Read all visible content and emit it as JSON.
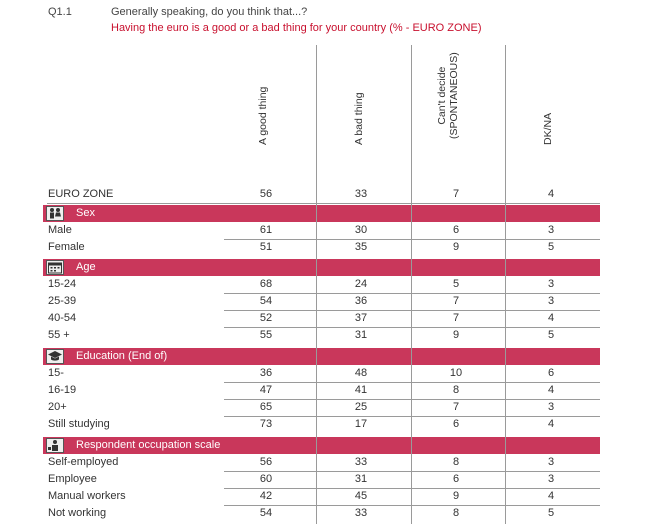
{
  "header": {
    "qid": "Q1.1",
    "question": "Generally speaking, do you think that...?",
    "subtitle": "Having the euro is a good or a bad thing for your country (% - EURO ZONE)"
  },
  "columns": [
    {
      "label": "A good thing"
    },
    {
      "label": "A bad thing"
    },
    {
      "label": "Can't decide",
      "label2": "(SPONTANEOUS)"
    },
    {
      "label": "DK/NA"
    }
  ],
  "total": {
    "label": "EURO ZONE",
    "values": [
      "56",
      "33",
      "7",
      "4"
    ]
  },
  "sections": [
    {
      "title": "Sex",
      "icon": "people-icon",
      "rows": [
        {
          "label": "Male",
          "values": [
            "61",
            "30",
            "6",
            "3"
          ]
        },
        {
          "label": "Female",
          "values": [
            "51",
            "35",
            "9",
            "5"
          ]
        }
      ]
    },
    {
      "title": "Age",
      "icon": "calendar-icon",
      "rows": [
        {
          "label": "15-24",
          "values": [
            "68",
            "24",
            "5",
            "3"
          ]
        },
        {
          "label": "25-39",
          "values": [
            "54",
            "36",
            "7",
            "3"
          ]
        },
        {
          "label": "40-54",
          "values": [
            "52",
            "37",
            "7",
            "4"
          ]
        },
        {
          "label": "55 +",
          "values": [
            "55",
            "31",
            "9",
            "5"
          ]
        }
      ]
    },
    {
      "title": "Education (End of)",
      "icon": "graduation-cap-icon",
      "rows": [
        {
          "label": "15-",
          "values": [
            "36",
            "48",
            "10",
            "6"
          ]
        },
        {
          "label": "16-19",
          "values": [
            "47",
            "41",
            "8",
            "4"
          ]
        },
        {
          "label": "20+",
          "values": [
            "65",
            "25",
            "7",
            "3"
          ]
        },
        {
          "label": "Still studying",
          "values": [
            "73",
            "17",
            "6",
            "4"
          ]
        }
      ]
    },
    {
      "title": "Respondent occupation scale",
      "icon": "worker-icon",
      "rows": [
        {
          "label": "Self-employed",
          "values": [
            "56",
            "33",
            "8",
            "3"
          ]
        },
        {
          "label": "Employee",
          "values": [
            "60",
            "31",
            "6",
            "3"
          ]
        },
        {
          "label": "Manual workers",
          "values": [
            "42",
            "45",
            "9",
            "4"
          ]
        },
        {
          "label": "Not working",
          "values": [
            "54",
            "33",
            "8",
            "5"
          ]
        }
      ]
    }
  ]
}
